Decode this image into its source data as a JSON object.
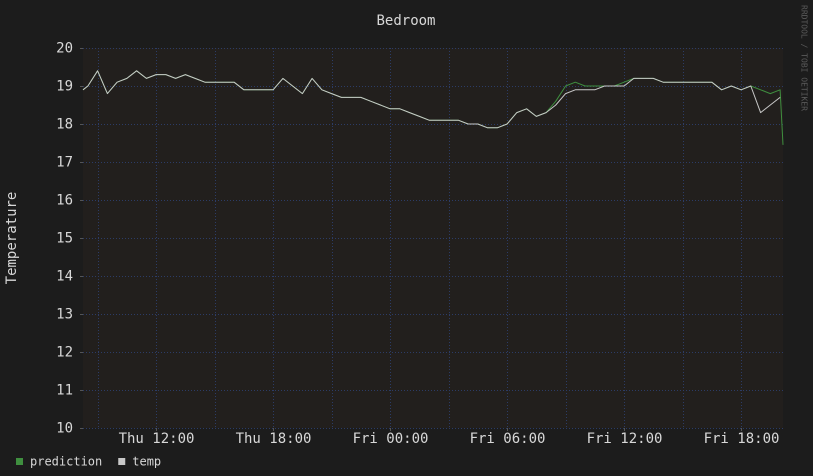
{
  "chart_data": {
    "type": "line",
    "title": "Bedroom",
    "y_label": "Temperature",
    "side_label": "RRDTOOL / TOBI OETIKER",
    "x": [
      8.25,
      8.5,
      9,
      9.5,
      10,
      10.5,
      11,
      11.5,
      12,
      12.5,
      13,
      13.5,
      14,
      14.5,
      15,
      15.5,
      16,
      16.5,
      17,
      17.5,
      18,
      18.5,
      19,
      19.5,
      20,
      20.5,
      21,
      21.5,
      22,
      22.5,
      23,
      23.5,
      24,
      24.5,
      25,
      25.5,
      26,
      26.5,
      27,
      27.5,
      28,
      28.5,
      29,
      29.5,
      30,
      30.5,
      31,
      31.5,
      32,
      32.5,
      33,
      33.5,
      34,
      34.5,
      35,
      35.5,
      36,
      36.5,
      37,
      37.5,
      38,
      38.5,
      39,
      39.5,
      40,
      40.5,
      41,
      41.5,
      42,
      42.5,
      43,
      43.5,
      44,
      44.15
    ],
    "series": [
      {
        "name": "prediction",
        "color": "#3f8f3f",
        "values": [
          18.9,
          19.0,
          19.4,
          18.8,
          19.1,
          19.2,
          19.4,
          19.2,
          19.3,
          19.3,
          19.2,
          19.3,
          19.2,
          19.1,
          19.1,
          19.1,
          19.1,
          18.9,
          18.9,
          18.9,
          18.9,
          19.2,
          19.0,
          18.8,
          19.2,
          18.9,
          18.8,
          18.7,
          18.7,
          18.7,
          18.6,
          18.5,
          18.4,
          18.4,
          18.3,
          18.2,
          18.1,
          18.1,
          18.1,
          18.1,
          18.0,
          18.0,
          17.9,
          17.9,
          18.0,
          18.3,
          18.4,
          18.2,
          18.3,
          18.6,
          19.0,
          19.1,
          19.0,
          19.0,
          19.0,
          19.0,
          19.1,
          19.2,
          19.2,
          19.2,
          19.1,
          19.1,
          19.1,
          19.1,
          19.1,
          19.1,
          18.9,
          19.0,
          18.9,
          19.0,
          18.9,
          18.8,
          18.9,
          17.45
        ]
      },
      {
        "name": "temp",
        "color": "#c8c8c8",
        "values": [
          18.9,
          19.0,
          19.4,
          18.8,
          19.1,
          19.2,
          19.4,
          19.2,
          19.3,
          19.3,
          19.2,
          19.3,
          19.2,
          19.1,
          19.1,
          19.1,
          19.1,
          18.9,
          18.9,
          18.9,
          18.9,
          19.2,
          19.0,
          18.8,
          19.2,
          18.9,
          18.8,
          18.7,
          18.7,
          18.7,
          18.6,
          18.5,
          18.4,
          18.4,
          18.3,
          18.2,
          18.1,
          18.1,
          18.1,
          18.1,
          18.0,
          18.0,
          17.9,
          17.9,
          18.0,
          18.3,
          18.4,
          18.2,
          18.3,
          18.5,
          18.8,
          18.9,
          18.9,
          18.9,
          19.0,
          19.0,
          19.0,
          19.2,
          19.2,
          19.2,
          19.1,
          19.1,
          19.1,
          19.1,
          19.1,
          19.1,
          18.9,
          19.0,
          18.9,
          19.0,
          18.3,
          18.5,
          18.7,
          null
        ]
      }
    ],
    "xlim": [
      8.25,
      44.15
    ],
    "ylim": [
      10,
      20
    ],
    "xticks": [
      {
        "value": 12,
        "label": "Thu 12:00"
      },
      {
        "value": 18,
        "label": "Thu 18:00"
      },
      {
        "value": 24,
        "label": "Fri 00:00"
      },
      {
        "value": 30,
        "label": "Fri 06:00"
      },
      {
        "value": 36,
        "label": "Fri 12:00"
      },
      {
        "value": 42,
        "label": "Fri 18:00"
      }
    ],
    "xminorticks": [
      9,
      15,
      21,
      27,
      33,
      39
    ],
    "yticks": [
      10,
      11,
      12,
      13,
      14,
      15,
      16,
      17,
      18,
      19,
      20
    ],
    "grid": true,
    "legend": "bottom-left"
  }
}
